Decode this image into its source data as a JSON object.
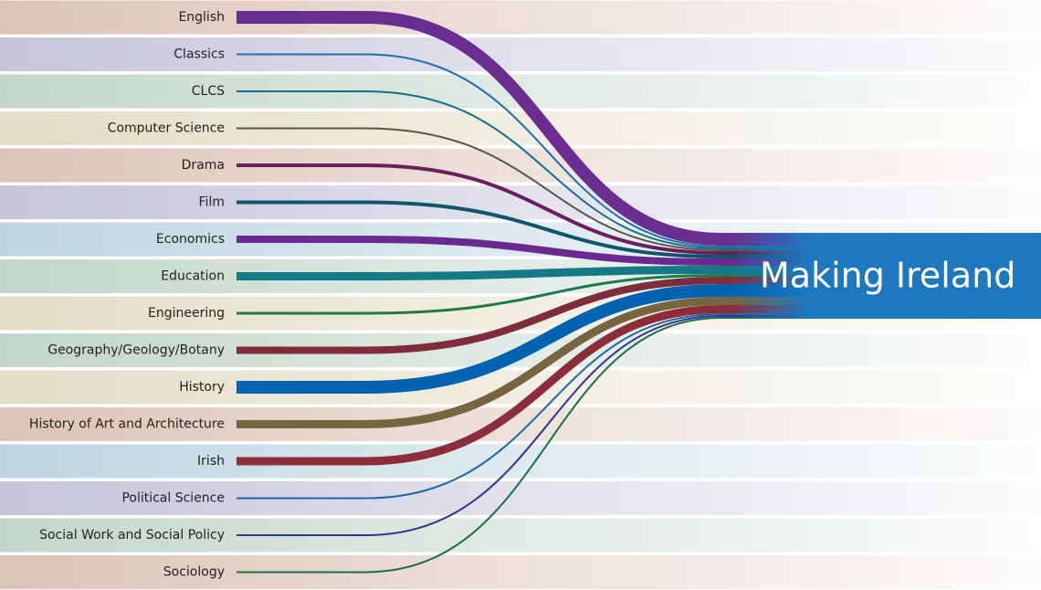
{
  "title": "Making Ireland",
  "nodes": [
    {
      "label": "English",
      "weight": 14,
      "color": "#6a2e91",
      "band_color": "#dcc3b8"
    },
    {
      "label": "Classics",
      "weight": 2,
      "color": "#1f6fb0",
      "band_color": "#c5c4da"
    },
    {
      "label": "CLCS",
      "weight": 2,
      "color": "#12708a",
      "band_color": "#c4d6cb"
    },
    {
      "label": "Computer Science",
      "weight": 2,
      "color": "#555845",
      "band_color": "#e2ddc6"
    },
    {
      "label": "Drama",
      "weight": 4,
      "color": "#6b1f5c",
      "band_color": "#dcc3b8"
    },
    {
      "label": "Film",
      "weight": 4,
      "color": "#0f566b",
      "band_color": "#c5c4da"
    },
    {
      "label": "Economics",
      "weight": 8,
      "color": "#6b2a8f",
      "band_color": "#bed5df"
    },
    {
      "label": "Education",
      "weight": 9,
      "color": "#137a86",
      "band_color": "#c4d6cb"
    },
    {
      "label": "Engineering",
      "weight": 3,
      "color": "#1d7a4a",
      "band_color": "#e2ddc6"
    },
    {
      "label": "Geography/Geology/Botany",
      "weight": 8,
      "color": "#7f2d3b",
      "band_color": "#c4d6cb"
    },
    {
      "label": "History",
      "weight": 14,
      "color": "#0063b0",
      "band_color": "#e2ddc6"
    },
    {
      "label": "History of Art and Architecture",
      "weight": 9,
      "color": "#776540",
      "band_color": "#dcc3b8"
    },
    {
      "label": "Irish",
      "weight": 9,
      "color": "#8e2d3a",
      "band_color": "#bed5df"
    },
    {
      "label": "Political Science",
      "weight": 2,
      "color": "#1f66a8",
      "band_color": "#c5c4da"
    },
    {
      "label": "Social Work and Social Policy",
      "weight": 2,
      "color": "#2e3592",
      "band_color": "#c4d6cb"
    },
    {
      "label": "Sociology",
      "weight": 2,
      "color": "#1a6e4a",
      "band_color": "#dcc3b8"
    }
  ],
  "target_color": "#1e78c0"
}
